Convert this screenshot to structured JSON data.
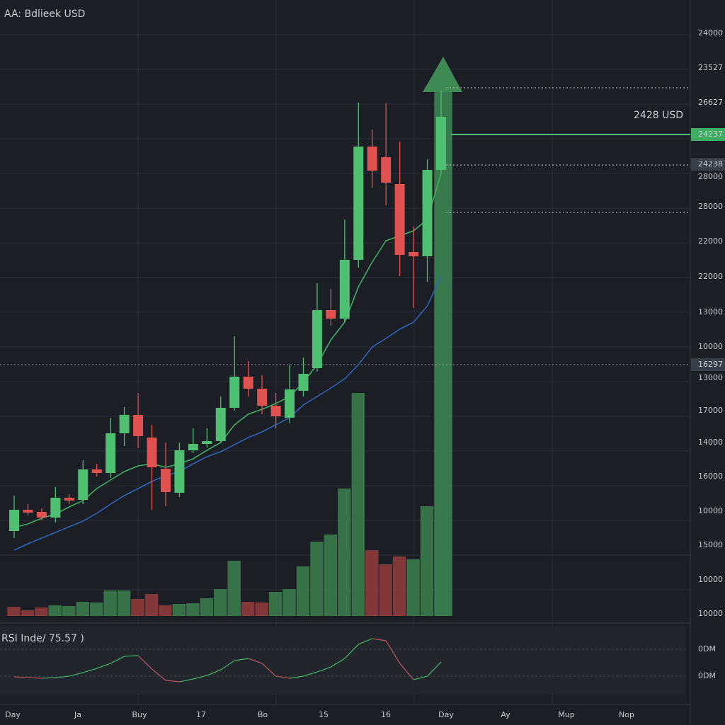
{
  "chart_data": {
    "type": "candlestick",
    "title": "AA: Bdlieek USD",
    "ylim": [
      10000,
      27400
    ],
    "axis_labels": [
      "24000",
      "23527",
      "26627",
      "28000",
      "28000",
      "22000",
      "22000",
      "13000",
      "10000",
      "13000",
      "17000",
      "14000",
      "16000",
      "10000",
      "15000",
      "10000",
      "10000"
    ],
    "x_labels": [
      "Day",
      "Ja",
      "Buy",
      "17",
      "Bo",
      "15",
      "16",
      "Day",
      "Ay",
      "Mup",
      "Nop"
    ],
    "categories": [
      null,
      null,
      null,
      null,
      null,
      null,
      null,
      null,
      null,
      null,
      null,
      null,
      null,
      null,
      null,
      null,
      null,
      null,
      null,
      null,
      null,
      null,
      null,
      null,
      null,
      null,
      null,
      null,
      null,
      null,
      null,
      null
    ],
    "up_color": "#4fbf72",
    "down_color": "#e0524f",
    "open": [
      12400,
      13000,
      12940,
      12780,
      13340,
      13280,
      14140,
      14040,
      15160,
      15680,
      15040,
      14160,
      13480,
      14680,
      14860,
      14940,
      15880,
      16760,
      16420,
      15940,
      15600,
      16360,
      17000,
      18640,
      18400,
      20060,
      23260,
      22960,
      22200,
      20280,
      20160,
      22600
    ],
    "high": [
      13400,
      13160,
      13040,
      13640,
      13440,
      14400,
      14300,
      15600,
      15900,
      16300,
      15400,
      14900,
      14900,
      15300,
      15300,
      16200,
      17900,
      17200,
      16800,
      16300,
      17100,
      17300,
      19400,
      19240,
      21200,
      24500,
      23740,
      24480,
      23400,
      21000,
      22900,
      24840
    ],
    "low": [
      12200,
      12840,
      12700,
      12640,
      13160,
      13160,
      13940,
      13900,
      14800,
      14740,
      13000,
      13100,
      13360,
      14600,
      14760,
      14900,
      15800,
      16200,
      15700,
      15300,
      15440,
      16200,
      16900,
      18200,
      18300,
      19840,
      22100,
      21600,
      19600,
      18700,
      19440,
      22500
    ],
    "close": [
      13000,
      12920,
      12780,
      13340,
      13260,
      14140,
      14040,
      15160,
      15680,
      15080,
      14200,
      13500,
      14680,
      14860,
      14940,
      15880,
      16760,
      16420,
      15940,
      15640,
      16400,
      16840,
      18640,
      18400,
      20060,
      23260,
      22580,
      22240,
      20200,
      20160,
      22600,
      24100
    ],
    "ma_series": [
      {
        "color": "#3fae63",
        "values": [
          12500,
          12600,
          12760,
          12880,
          13080,
          13260,
          13600,
          13840,
          14080,
          14240,
          14300,
          14200,
          14300,
          14440,
          14680,
          14900,
          15400,
          15700,
          15840,
          16000,
          16200,
          16600,
          17100,
          17800,
          18300,
          19300,
          20000,
          20600,
          20740,
          20880,
          21200,
          22500
        ]
      },
      {
        "color": "#2f63b8",
        "values": [
          11860,
          12040,
          12200,
          12360,
          12520,
          12680,
          12900,
          13160,
          13400,
          13600,
          13800,
          13960,
          14080,
          14300,
          14500,
          14640,
          14840,
          15040,
          15200,
          15400,
          15600,
          15960,
          16200,
          16440,
          16700,
          17100,
          17600,
          17840,
          18100,
          18300,
          18760,
          19600
        ]
      }
    ],
    "volume": {
      "ylim": [
        0,
        400
      ],
      "values": [
        13,
        8,
        12,
        15,
        14,
        20,
        19,
        36,
        36,
        24,
        31,
        15,
        17,
        18,
        25,
        38,
        78,
        20,
        19,
        34,
        38,
        70,
        105,
        115,
        180,
        315,
        93,
        73,
        84,
        80,
        155,
        740
      ],
      "colors": [
        "#8e3b3b",
        "#8e3b3b",
        "#8e3b3b",
        "#3b7a4c",
        "#3b7a4c",
        "#3b7a4c",
        "#3b7a4c",
        "#3b7a4c",
        "#3b7a4c",
        "#8e3b3b",
        "#8e3b3b",
        "#8e3b3b",
        "#3b7a4c",
        "#3b7a4c",
        "#3b7a4c",
        "#3b7a4c",
        "#3b7a4c",
        "#8e3b3b",
        "#8e3b3b",
        "#3b7a4c",
        "#3b7a4c",
        "#3b7a4c",
        "#3b7a4c",
        "#3b7a4c",
        "#3b7a4c",
        "#3b7a4c",
        "#8e3b3b",
        "#8e3b3b",
        "#8e3b3b",
        "#3b7a4c",
        "#3b7a4c",
        "#3d8a55"
      ]
    },
    "annotations": {
      "price_label": "2428 USD",
      "boxes": [
        "24237",
        "24238",
        "16297"
      ]
    },
    "rsi": {
      "title": "RSI Inde/  75.57 )",
      "ylim": [
        0,
        100
      ],
      "axis_labels": [
        "0DM",
        "0DM"
      ],
      "up_color": "#3fae63",
      "down_color": "#b5545a",
      "values": [
        32.4,
        31.4,
        30.5,
        31.4,
        33.3,
        38.1,
        43.8,
        50.5,
        60.0,
        61.0,
        42.9,
        27.6,
        25.7,
        29.5,
        34.3,
        41.9,
        54.3,
        57.1,
        50.5,
        33.3,
        30.5,
        33.3,
        39.0,
        45.7,
        57.1,
        76.2,
        83.8,
        81.0,
        50.5,
        28.6,
        33.3,
        52.4
      ]
    }
  }
}
